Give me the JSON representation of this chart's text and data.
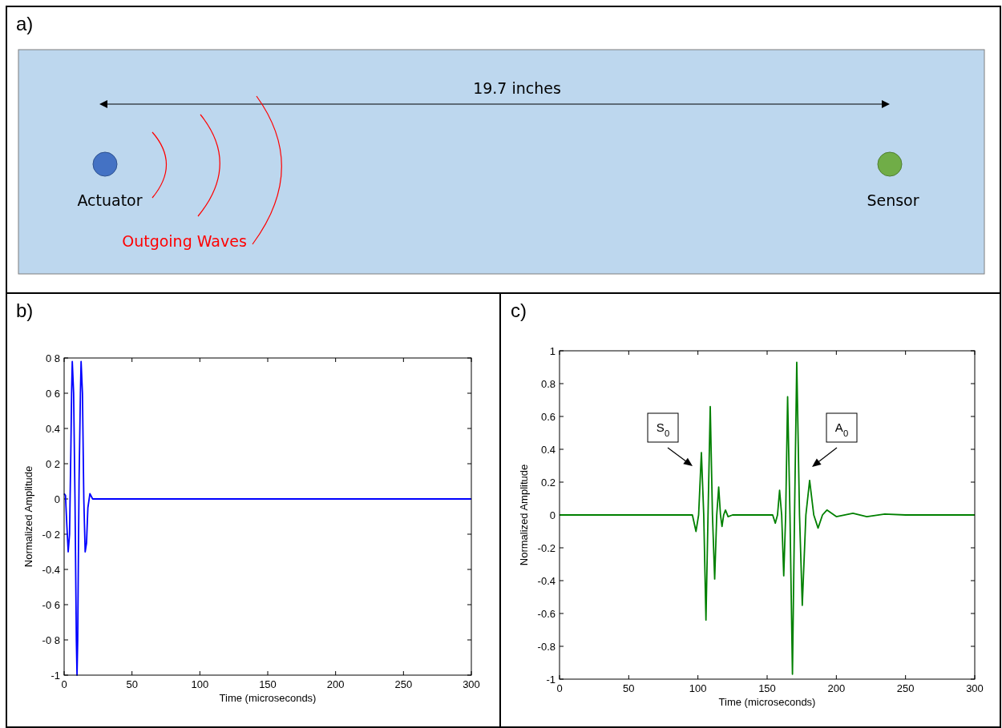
{
  "chart_data": [
    {
      "type": "other",
      "title": "a)",
      "annotations": [
        "19.7 inches",
        "Actuator",
        "Outgoing Waves",
        "Sensor"
      ]
    },
    {
      "type": "line",
      "title": "b)",
      "xlabel": "Time (microseconds)",
      "ylabel": "Normalized Amplitude",
      "xlim": [
        0,
        300
      ],
      "ylim": [
        -1,
        0.8
      ],
      "xticks": [
        0,
        50,
        100,
        150,
        200,
        250,
        300
      ],
      "yticks": [
        {
          "value": -1,
          "label": "-1"
        },
        {
          "value": -0.8,
          "label": "-0 8"
        },
        {
          "value": -0.6,
          "label": "-0 6"
        },
        {
          "value": -0.4,
          "label": "-0.4"
        },
        {
          "value": -0.2,
          "label": "-0 2"
        },
        0,
        {
          "value": 0.2,
          "label": "0 2"
        },
        {
          "value": 0.4,
          "label": "0.4"
        },
        {
          "value": 0.6,
          "label": "0 6"
        },
        {
          "value": 0.8,
          "label": "0 8"
        }
      ],
      "series": [
        {
          "color": "#0000ff",
          "x": [
            0,
            1,
            2,
            3,
            4,
            5,
            5.5,
            6,
            7,
            8,
            9,
            9.5,
            10,
            11,
            12,
            12.5,
            13.5,
            14.5,
            15.5,
            16.5,
            17.5,
            19,
            21,
            300
          ],
          "values": [
            0.03,
            0.02,
            -0.15,
            -0.3,
            -0.2,
            0.3,
            0.6,
            0.78,
            0.6,
            0,
            -0.8,
            -1,
            -0.8,
            0.1,
            0.6,
            0.78,
            0.6,
            0,
            -0.3,
            -0.25,
            -0.05,
            0.03,
            0,
            0
          ]
        }
      ]
    },
    {
      "type": "line",
      "title": "c)",
      "xlabel": "Time (microseconds)",
      "ylabel": "Normalized Amplitude",
      "xlim": [
        0,
        300
      ],
      "ylim": [
        -1,
        1
      ],
      "xticks": [
        0,
        50,
        100,
        150,
        200,
        250,
        300
      ],
      "yticks": [
        -1,
        -0.8,
        -0.6,
        -0.4,
        -0.2,
        0,
        0.2,
        0.4,
        0.6,
        0.8,
        1
      ],
      "annotations": [
        "S$_{0}$",
        "A$_{0}$"
      ],
      "series": [
        {
          "color": "#008000",
          "x": [
            0,
            50,
            96,
            98.6,
            100.5,
            102.5,
            104.2,
            105.8,
            107.3,
            108.9,
            110.5,
            112.1,
            113.6,
            115,
            116.3,
            117.4,
            118.6,
            119.9,
            121.8,
            125,
            154,
            155.9,
            157.5,
            159,
            160.5,
            162,
            163.4,
            164.8,
            166.5,
            168.3,
            169.8,
            171.4,
            173.4,
            175.4,
            178,
            180.7,
            183.7,
            186.8,
            190,
            193.2,
            200,
            212,
            222,
            235,
            250,
            300
          ],
          "values": [
            0,
            0,
            0,
            -0.1,
            0,
            0.38,
            0,
            -0.64,
            0,
            0.66,
            0,
            -0.39,
            0,
            0.17,
            0,
            -0.07,
            0,
            0.03,
            -0.01,
            0,
            0,
            -0.05,
            0,
            0.15,
            0,
            -0.37,
            0,
            0.72,
            0,
            -0.97,
            0,
            0.93,
            0,
            -0.55,
            0,
            0.21,
            0,
            -0.08,
            0,
            0.03,
            -0.01,
            0.01,
            -0.01,
            0.005,
            0,
            0
          ]
        }
      ]
    }
  ]
}
